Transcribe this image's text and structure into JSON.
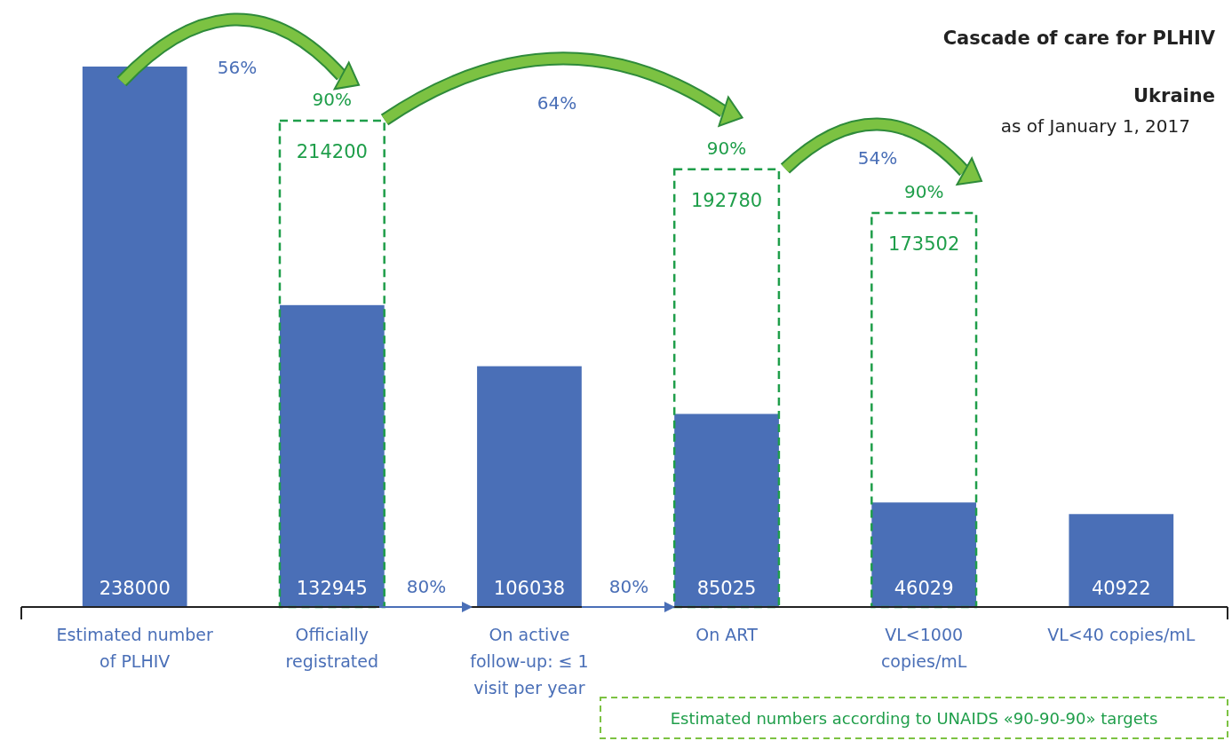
{
  "chart_data": {
    "type": "bar",
    "title": "Cascade of care for PLHIV",
    "subtitle": "Ukraine",
    "categories": [
      "Estimated number of PLHIV",
      "Officially registrated",
      "On active follow-up: ≤ 1 visit per year",
      "On ART",
      "VL<1000 copies/mL",
      "VL<40 copies/mL"
    ],
    "series": [
      {
        "color": "#4a6fb7",
        "values": [
          238000,
          132945,
          106038,
          85025,
          46029,
          40922
        ]
      },
      {
        "name": "Estimated numbers according to UNAIDS «90-90-90» targets",
        "color": "#1f9e4a",
        "line_style": "dashed",
        "values": [
          null,
          214200,
          null,
          192780,
          173502,
          null
        ]
      }
    ],
    "data_labels": true,
    "legend": "bottom right",
    "annotations": [
      "as of January 1, 2017",
      "56%",
      {
        "text": "90%",
        "x": "Officially registrated",
        "y": 214200
      },
      "64%",
      {
        "text": "90%",
        "x": "On ART",
        "y": 192780
      },
      "54%",
      {
        "text": "90%",
        "x": "VL<1000 copies/mL",
        "y": 173502
      },
      "80%",
      "80%"
    ]
  }
}
